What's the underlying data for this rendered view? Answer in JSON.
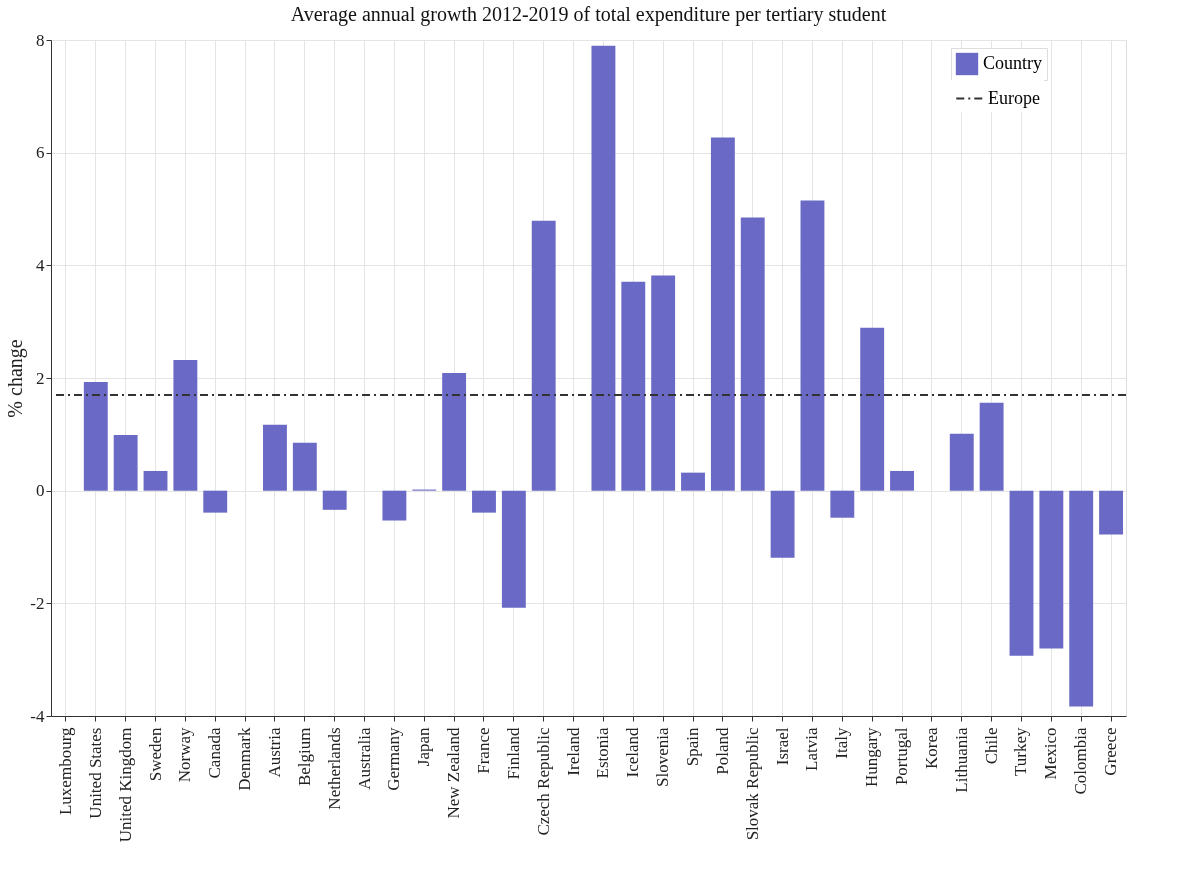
{
  "chart_data": {
    "type": "bar",
    "title": "Average annual growth 2012-2019 of total expenditure per tertiary student",
    "ylabel": "% change",
    "categories": [
      "Luxembourg",
      "United States",
      "United Kingdom",
      "Sweden",
      "Norway",
      "Canada",
      "Denmark",
      "Austria",
      "Belgium",
      "Netherlands",
      "Australia",
      "Germany",
      "Japan",
      "New Zealand",
      "France",
      "Finland",
      "Czech Republic",
      "Ireland",
      "Estonia",
      "Iceland",
      "Slovenia",
      "Spain",
      "Poland",
      "Slovak Republic",
      "Israel",
      "Latvia",
      "Italy",
      "Hungary",
      "Portugal",
      "Korea",
      "Lithuania",
      "Chile",
      "Turkey",
      "Mexico",
      "Colombia",
      "Greece"
    ],
    "series": [
      {
        "name": "Country",
        "color": "#6a6ac6",
        "values": [
          null,
          1.93,
          0.99,
          0.35,
          2.32,
          -0.39,
          null,
          1.17,
          0.85,
          -0.34,
          null,
          -0.53,
          0.02,
          2.09,
          -0.39,
          -2.08,
          4.79,
          null,
          7.9,
          3.71,
          3.82,
          0.32,
          6.27,
          4.85,
          -1.19,
          5.15,
          -0.48,
          2.89,
          0.35,
          null,
          1.01,
          1.56,
          -2.93,
          -2.8,
          -3.83,
          -0.78
        ]
      }
    ],
    "ref_lines": [
      {
        "axis": "y",
        "value": 1.7,
        "label": "Europe",
        "color": "#333333",
        "line_style": "dashdot"
      }
    ],
    "ylim": [
      -4,
      8
    ],
    "yticks": [
      -4,
      -2,
      0,
      2,
      4,
      6,
      8
    ],
    "grid": true,
    "legend": "top right"
  }
}
